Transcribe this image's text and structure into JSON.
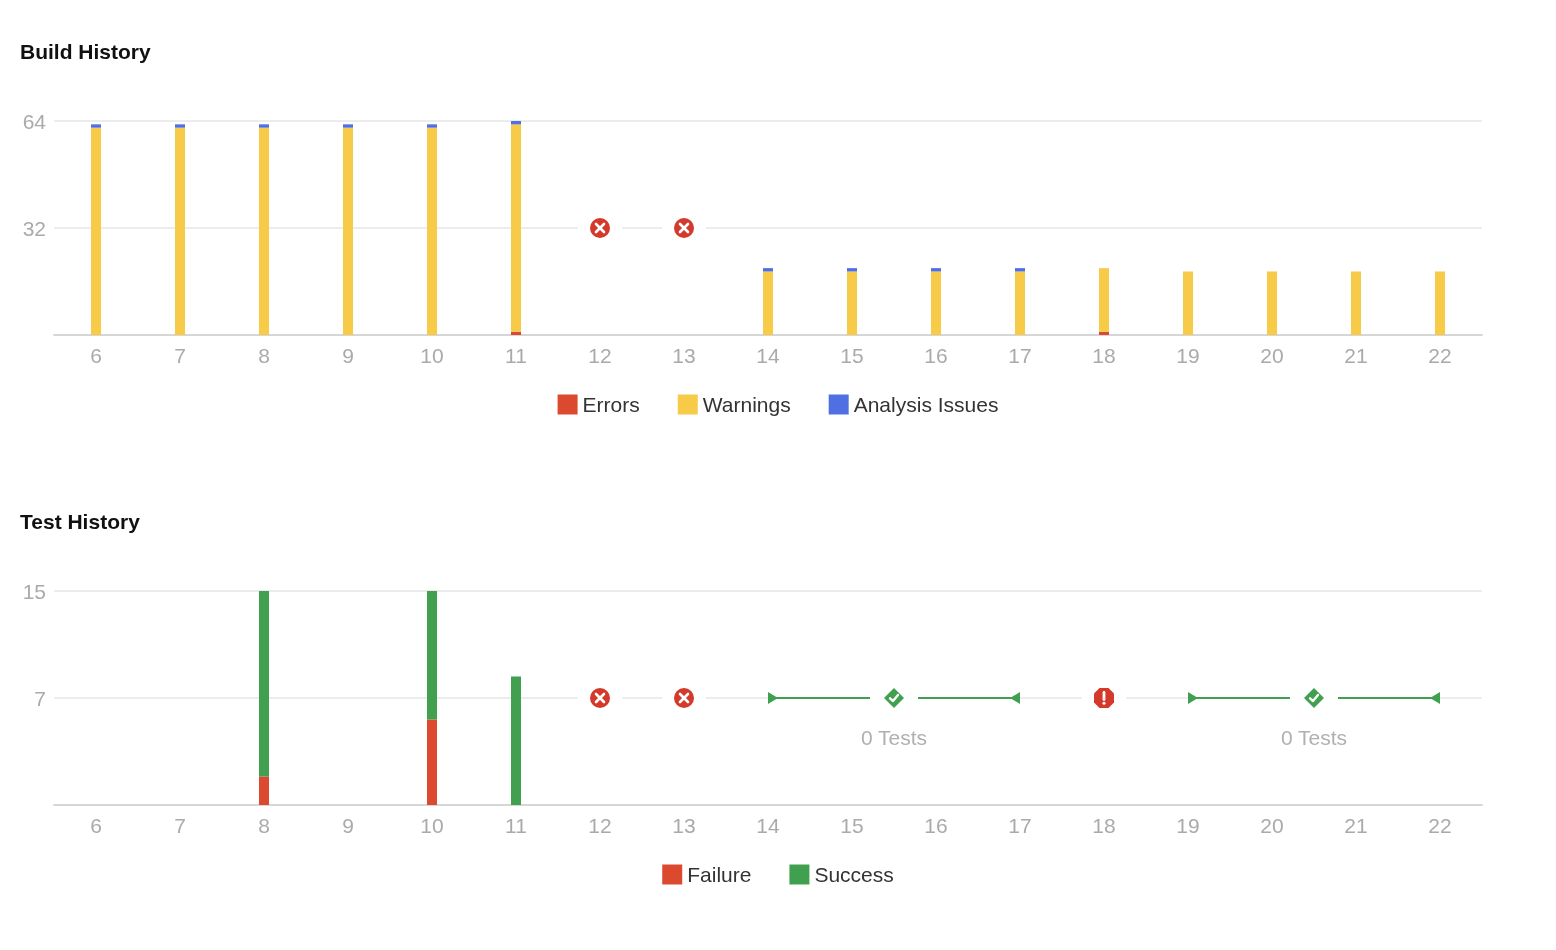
{
  "chart_data": [
    {
      "type": "bar",
      "title": "Build History",
      "categories": [
        "6",
        "7",
        "8",
        "9",
        "10",
        "11",
        "12",
        "13",
        "14",
        "15",
        "16",
        "17",
        "18",
        "19",
        "20",
        "21",
        "22"
      ],
      "series": [
        {
          "name": "Errors",
          "color": "#db4a2f",
          "values": [
            0,
            0,
            0,
            0,
            0,
            1,
            null,
            null,
            0,
            0,
            0,
            0,
            1,
            0,
            0,
            0,
            0
          ]
        },
        {
          "name": "Warnings",
          "color": "#f7cb48",
          "values": [
            62,
            62,
            62,
            62,
            62,
            62,
            null,
            null,
            19,
            19,
            19,
            19,
            19,
            19,
            19,
            19,
            19
          ]
        },
        {
          "name": "Analysis Issues",
          "color": "#4f6fe3",
          "values": [
            1,
            1,
            1,
            1,
            1,
            1,
            null,
            null,
            1,
            1,
            1,
            1,
            0,
            0,
            0,
            0,
            0
          ]
        }
      ],
      "stacked": true,
      "ylim": [
        0,
        64
      ],
      "yticks": [
        32,
        64
      ],
      "grid": "y",
      "legend": "bottom"
    },
    {
      "type": "bar",
      "title": "Test History",
      "categories": [
        "6",
        "7",
        "8",
        "9",
        "10",
        "11",
        "12",
        "13",
        "14",
        "15",
        "16",
        "17",
        "18",
        "19",
        "20",
        "21",
        "22"
      ],
      "series": [
        {
          "name": "Failure",
          "color": "#db4a2f",
          "values": [
            null,
            null,
            2,
            null,
            6,
            0,
            null,
            null,
            null,
            null,
            null,
            null,
            null,
            null,
            null,
            null,
            null
          ]
        },
        {
          "name": "Success",
          "color": "#40a04f",
          "values": [
            null,
            null,
            13,
            null,
            9,
            9,
            null,
            null,
            null,
            null,
            null,
            null,
            null,
            null,
            null,
            null,
            null
          ]
        }
      ],
      "stacked": true,
      "ylim": [
        0,
        15
      ],
      "yticks": [
        {
          "value": 7.5,
          "label": "7"
        },
        15
      ],
      "grid": "y",
      "legend": "bottom",
      "annotations": [
        "0 Tests",
        "0 Tests"
      ]
    }
  ]
}
